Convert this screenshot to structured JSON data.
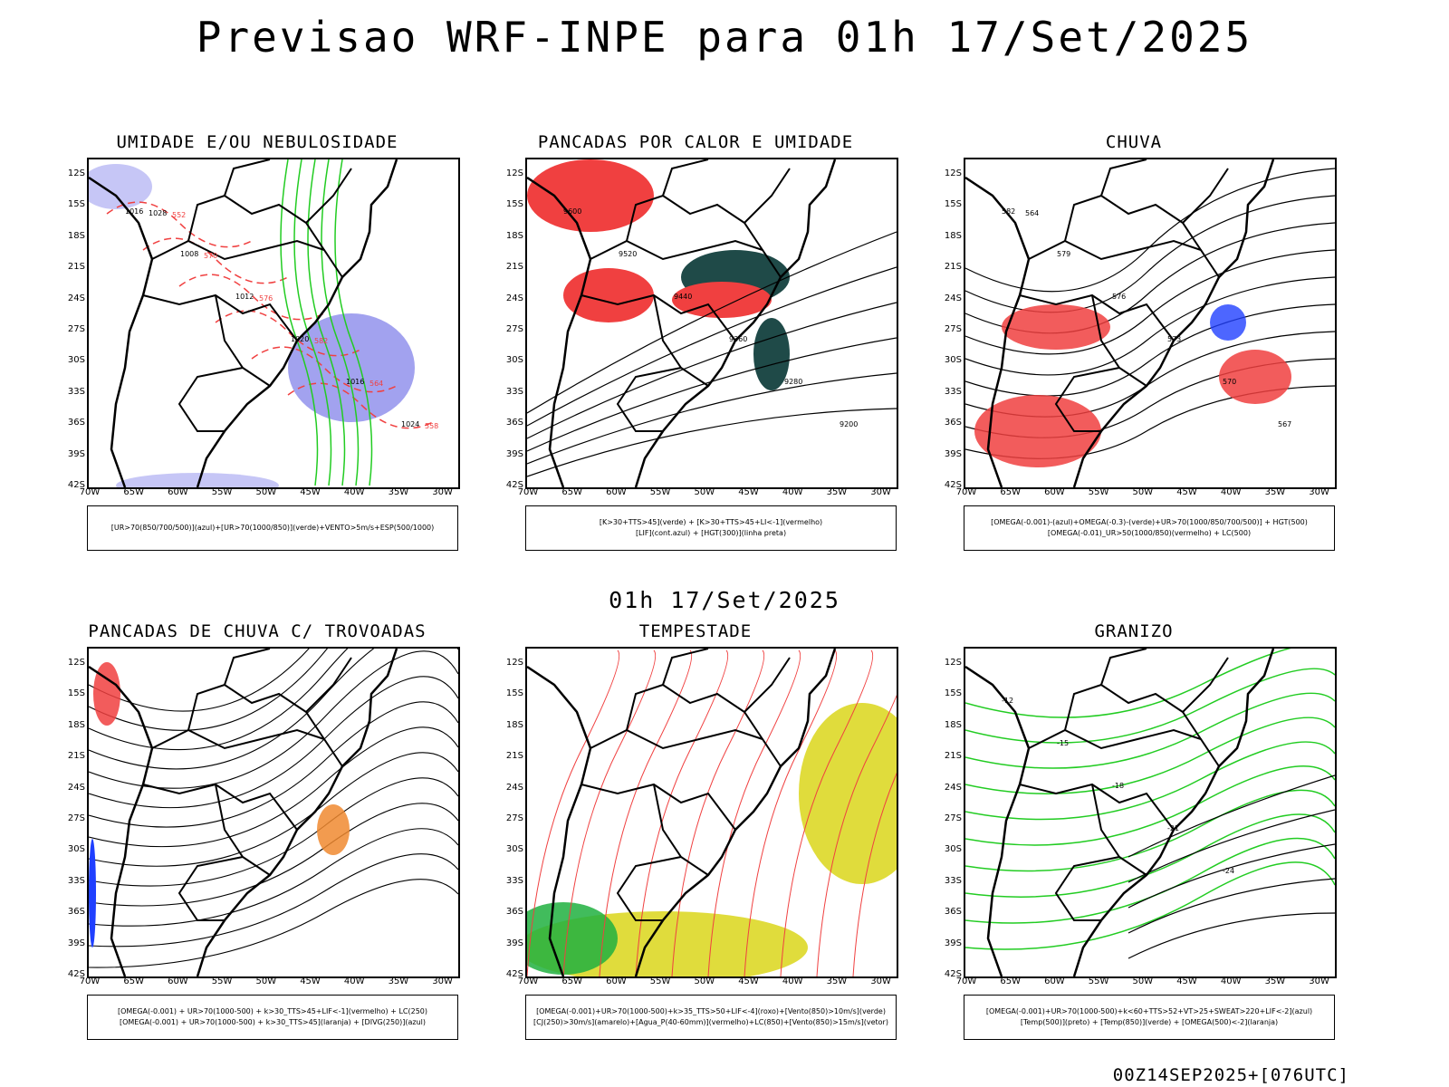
{
  "title": "Previsao WRF-INPE  para 01h 17/Set/2025",
  "mid_title": "01h 17/Set/2025",
  "footer": "00Z14SEP2025+[076UTC]",
  "lat_labels": [
    "12S",
    "15S",
    "18S",
    "21S",
    "24S",
    "27S",
    "30S",
    "33S",
    "36S",
    "39S",
    "42S"
  ],
  "lon_labels": [
    "70W",
    "65W",
    "60W",
    "55W",
    "50W",
    "45W",
    "40W",
    "35W",
    "30W"
  ],
  "panels": [
    {
      "title": "UMIDADE E/OU NEBULOSIDADE",
      "legend": [
        "[UR>70(850/700/500)](azul)+[UR>70(1000/850)](verde)+VENTO>5m/s+ESP(500/1000)"
      ],
      "contours": [
        "1016",
        "1008",
        "1012",
        "1020",
        "1016",
        "1024",
        "1028",
        "570",
        "576",
        "582",
        "564",
        "558",
        "552"
      ]
    },
    {
      "title": "PANCADAS POR CALOR E UMIDADE",
      "legend": [
        "[K>30+TTS>45](verde) + [K>30+TTS>45+LI<-1](vermelho)",
        "[LIF](cont.azul) + [HGT(300)](linha preta)"
      ],
      "contours": [
        "9600",
        "9520",
        "9440",
        "9360",
        "9280",
        "9200"
      ]
    },
    {
      "title": "CHUVA",
      "legend": [
        "[OMEGA(-0.001)-(azul)+OMEGA(-0.3)-(verde)+UR>70(1000/850/700/500)] + HGT(500)",
        "[OMEGA(-0.01)_UR>50(1000/850)(vermelho) + LC(500)"
      ],
      "contours": [
        "582",
        "579",
        "576",
        "573",
        "570",
        "567",
        "564"
      ]
    },
    {
      "title": "PANCADAS DE CHUVA C/ TROVOADAS",
      "legend": [
        "[OMEGA(-0.001) + UR>70(1000-500) + k>30_TTS>45+LIF<-1](vermelho) + LC(250)",
        "[OMEGA(-0.001) + UR>70(1000-500) + k>30_TTS>45](laranja) + [DIVG(250)](azul)"
      ],
      "contours": []
    },
    {
      "title": "TEMPESTADE",
      "legend": [
        "[OMEGA(-0.001)+UR>70(1000-500)+k>35_TTS>50+LIF<-4](roxo)+[Vento(850)>10m/s](verde)",
        "[CJ(250)>30m/s](amarelo)+[Agua_P(40-60mm)](vermelho)+LC(850)+[Vento(850)>15m/s](vetor)"
      ],
      "contours": []
    },
    {
      "title": "GRANIZO",
      "legend": [
        "[OMEGA(-0.001)+UR>70(1000-500)+k<60+TTS>52+VT>25+SWEAT>220+LIF<-2](azul)",
        "[Temp(500)](preto) + [Temp(850)](verde) + [OMEGA(500)<-2](laranja)"
      ],
      "contours": [
        "-12",
        "-15",
        "-18",
        "-21",
        "-24"
      ]
    }
  ],
  "colors": {
    "coast": "#000000",
    "red": "#f04040",
    "green": "#22cc22",
    "blue": "#2040ff",
    "lightblue": "#b8b8f4",
    "darkteal": "#1f4a48",
    "yellow": "#e0dc3c",
    "orange": "#f08a30",
    "purple": "#a020c0"
  }
}
